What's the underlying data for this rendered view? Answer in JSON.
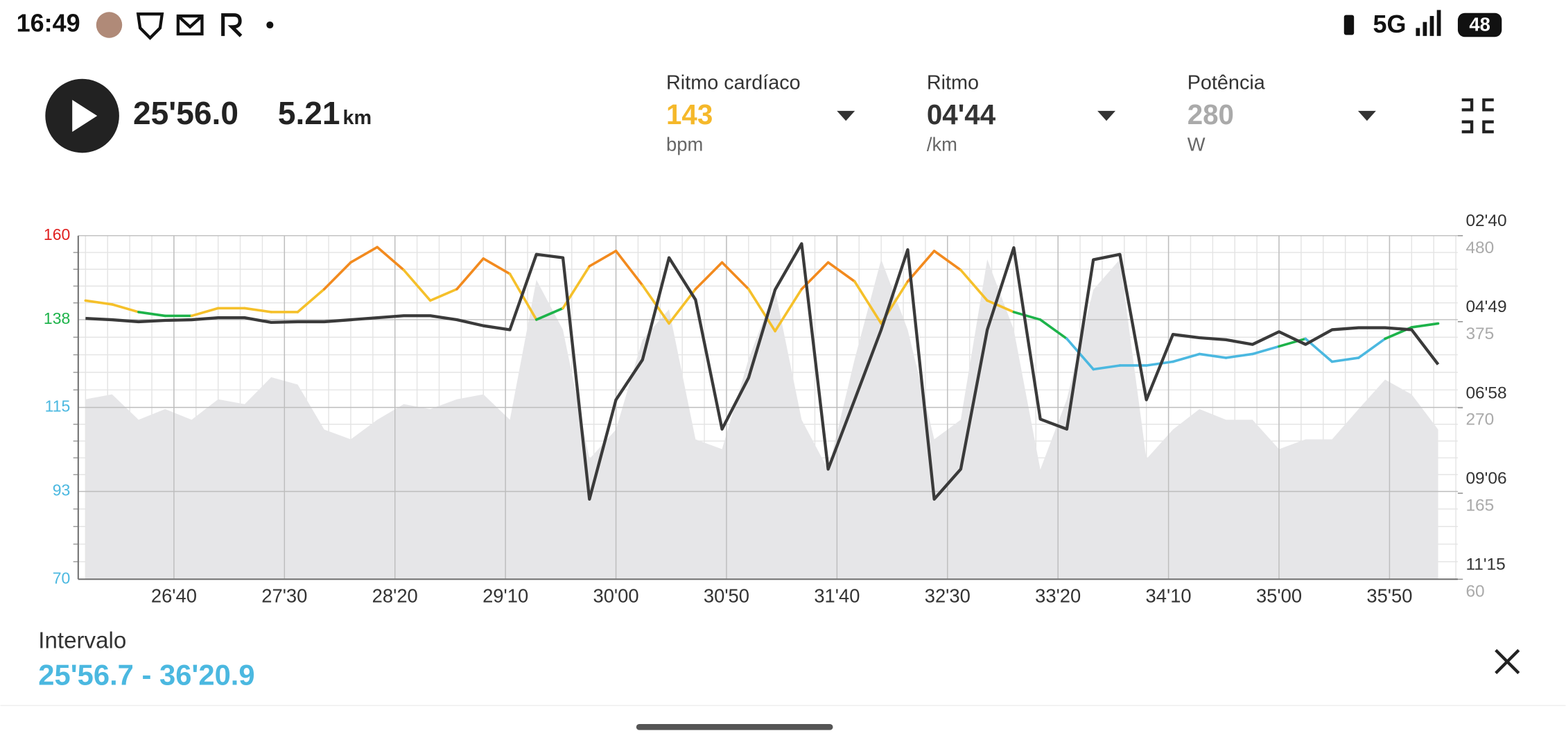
{
  "status_bar": {
    "time": "16:49",
    "network": "5G",
    "battery": "48"
  },
  "player": {
    "elapsed": "25'56.0",
    "distance": "5.21",
    "distance_unit": "km"
  },
  "metrics": [
    {
      "label": "Ritmo cardíaco",
      "value": "143",
      "unit": "bpm",
      "color": "#f5b82a"
    },
    {
      "label": "Ritmo",
      "value": "04'44",
      "unit": "/km",
      "color": "#333333"
    },
    {
      "label": "Potência",
      "value": "280",
      "unit": "W",
      "color": "#aaaaaa"
    }
  ],
  "interval": {
    "label": "Intervalo",
    "range": "25'56.7 - 36'20.9"
  },
  "chart_data": {
    "type": "line",
    "x": [
      1560,
      1572,
      1584,
      1596,
      1608,
      1620,
      1632,
      1644,
      1656,
      1668,
      1680,
      1692,
      1704,
      1716,
      1728,
      1740,
      1752,
      1764,
      1776,
      1788,
      1800,
      1812,
      1824,
      1836,
      1848,
      1860,
      1872,
      1884,
      1896,
      1908,
      1920,
      1932,
      1944,
      1956,
      1968,
      1980,
      1992,
      2004,
      2016,
      2028,
      2040,
      2052,
      2064,
      2076,
      2088,
      2100,
      2112,
      2124,
      2136,
      2148,
      2160,
      2172
    ],
    "xlim": [
      1556.7,
      2180.9
    ],
    "xticks": [
      {
        "value": 1600,
        "label": "26'40"
      },
      {
        "value": 1650,
        "label": "27'30"
      },
      {
        "value": 1700,
        "label": "28'20"
      },
      {
        "value": 1750,
        "label": "29'10"
      },
      {
        "value": 1800,
        "label": "30'00"
      },
      {
        "value": 1850,
        "label": "30'50"
      },
      {
        "value": 1900,
        "label": "31'40"
      },
      {
        "value": 1950,
        "label": "32'30"
      },
      {
        "value": 2000,
        "label": "33'20"
      },
      {
        "value": 2050,
        "label": "34'10"
      },
      {
        "value": 2100,
        "label": "35'00"
      },
      {
        "value": 2150,
        "label": "35'50"
      }
    ],
    "ylim": [
      70,
      160
    ],
    "yticks": [
      70,
      93,
      115,
      138,
      160
    ],
    "ytick_colors": [
      "#4bb8e0",
      "#4bb8e0",
      "#4bb8e0",
      "#1db34a",
      "#e02020"
    ],
    "y2lim": [
      675,
      160
    ],
    "y2ticks": [
      {
        "value": 160,
        "label": "02'40"
      },
      {
        "value": 289,
        "label": "04'49"
      },
      {
        "value": 418,
        "label": "06'58"
      },
      {
        "value": 546,
        "label": "09'06"
      },
      {
        "value": 675,
        "label": "11'15"
      }
    ],
    "y3lim": [
      60,
      480
    ],
    "y3ticks": [
      60,
      165,
      270,
      375,
      480
    ],
    "y3tick_color": "#aaaaaa",
    "grid": true,
    "series": [
      {
        "axis": "y",
        "zones": [
          {
            "min": 157,
            "color": "#e03020"
          },
          {
            "min": 149,
            "color": "#f28a1e"
          },
          {
            "min": 140,
            "color": "#f5c02a"
          },
          {
            "min": 131,
            "color": "#1db34a"
          },
          {
            "min": 70,
            "color": "#4bb8e0"
          }
        ],
        "values": [
          143,
          142,
          140,
          139,
          139,
          141,
          141,
          140,
          140,
          146,
          153,
          157,
          151,
          143,
          146,
          154,
          150,
          138,
          141,
          152,
          156,
          147,
          137,
          146,
          153,
          146,
          135,
          146,
          153,
          148,
          137,
          148,
          156,
          151,
          143,
          140,
          138,
          133,
          125,
          126,
          126,
          127,
          129,
          128,
          129,
          131,
          133,
          127,
          128,
          133,
          136,
          137
        ]
      },
      {
        "axis": "y2",
        "color": "#3a3a3a",
        "values": [
          284,
          286,
          289,
          287,
          286,
          283,
          283,
          290,
          289,
          289,
          286,
          283,
          280,
          280,
          286,
          295,
          301,
          188,
          193,
          555,
          406,
          346,
          193,
          256,
          450,
          373,
          241,
          172,
          510,
          406,
          301,
          181,
          555,
          510,
          301,
          178,
          435,
          450,
          196,
          188,
          406,
          308,
          313,
          316,
          323,
          304,
          323,
          301,
          298,
          298,
          301,
          353
        ]
      },
      {
        "axis": "y3",
        "type": "area",
        "color": "#e6e6e8",
        "values": [
          280,
          286,
          255,
          268,
          255,
          280,
          274,
          307,
          298,
          243,
          231,
          255,
          274,
          268,
          280,
          286,
          255,
          426,
          365,
          207,
          243,
          353,
          390,
          231,
          219,
          329,
          414,
          255,
          194,
          329,
          451,
          365,
          231,
          255,
          451,
          365,
          194,
          280,
          414,
          451,
          207,
          243,
          268,
          255,
          255,
          219,
          231,
          231,
          268,
          304,
          286,
          243
        ]
      }
    ]
  }
}
